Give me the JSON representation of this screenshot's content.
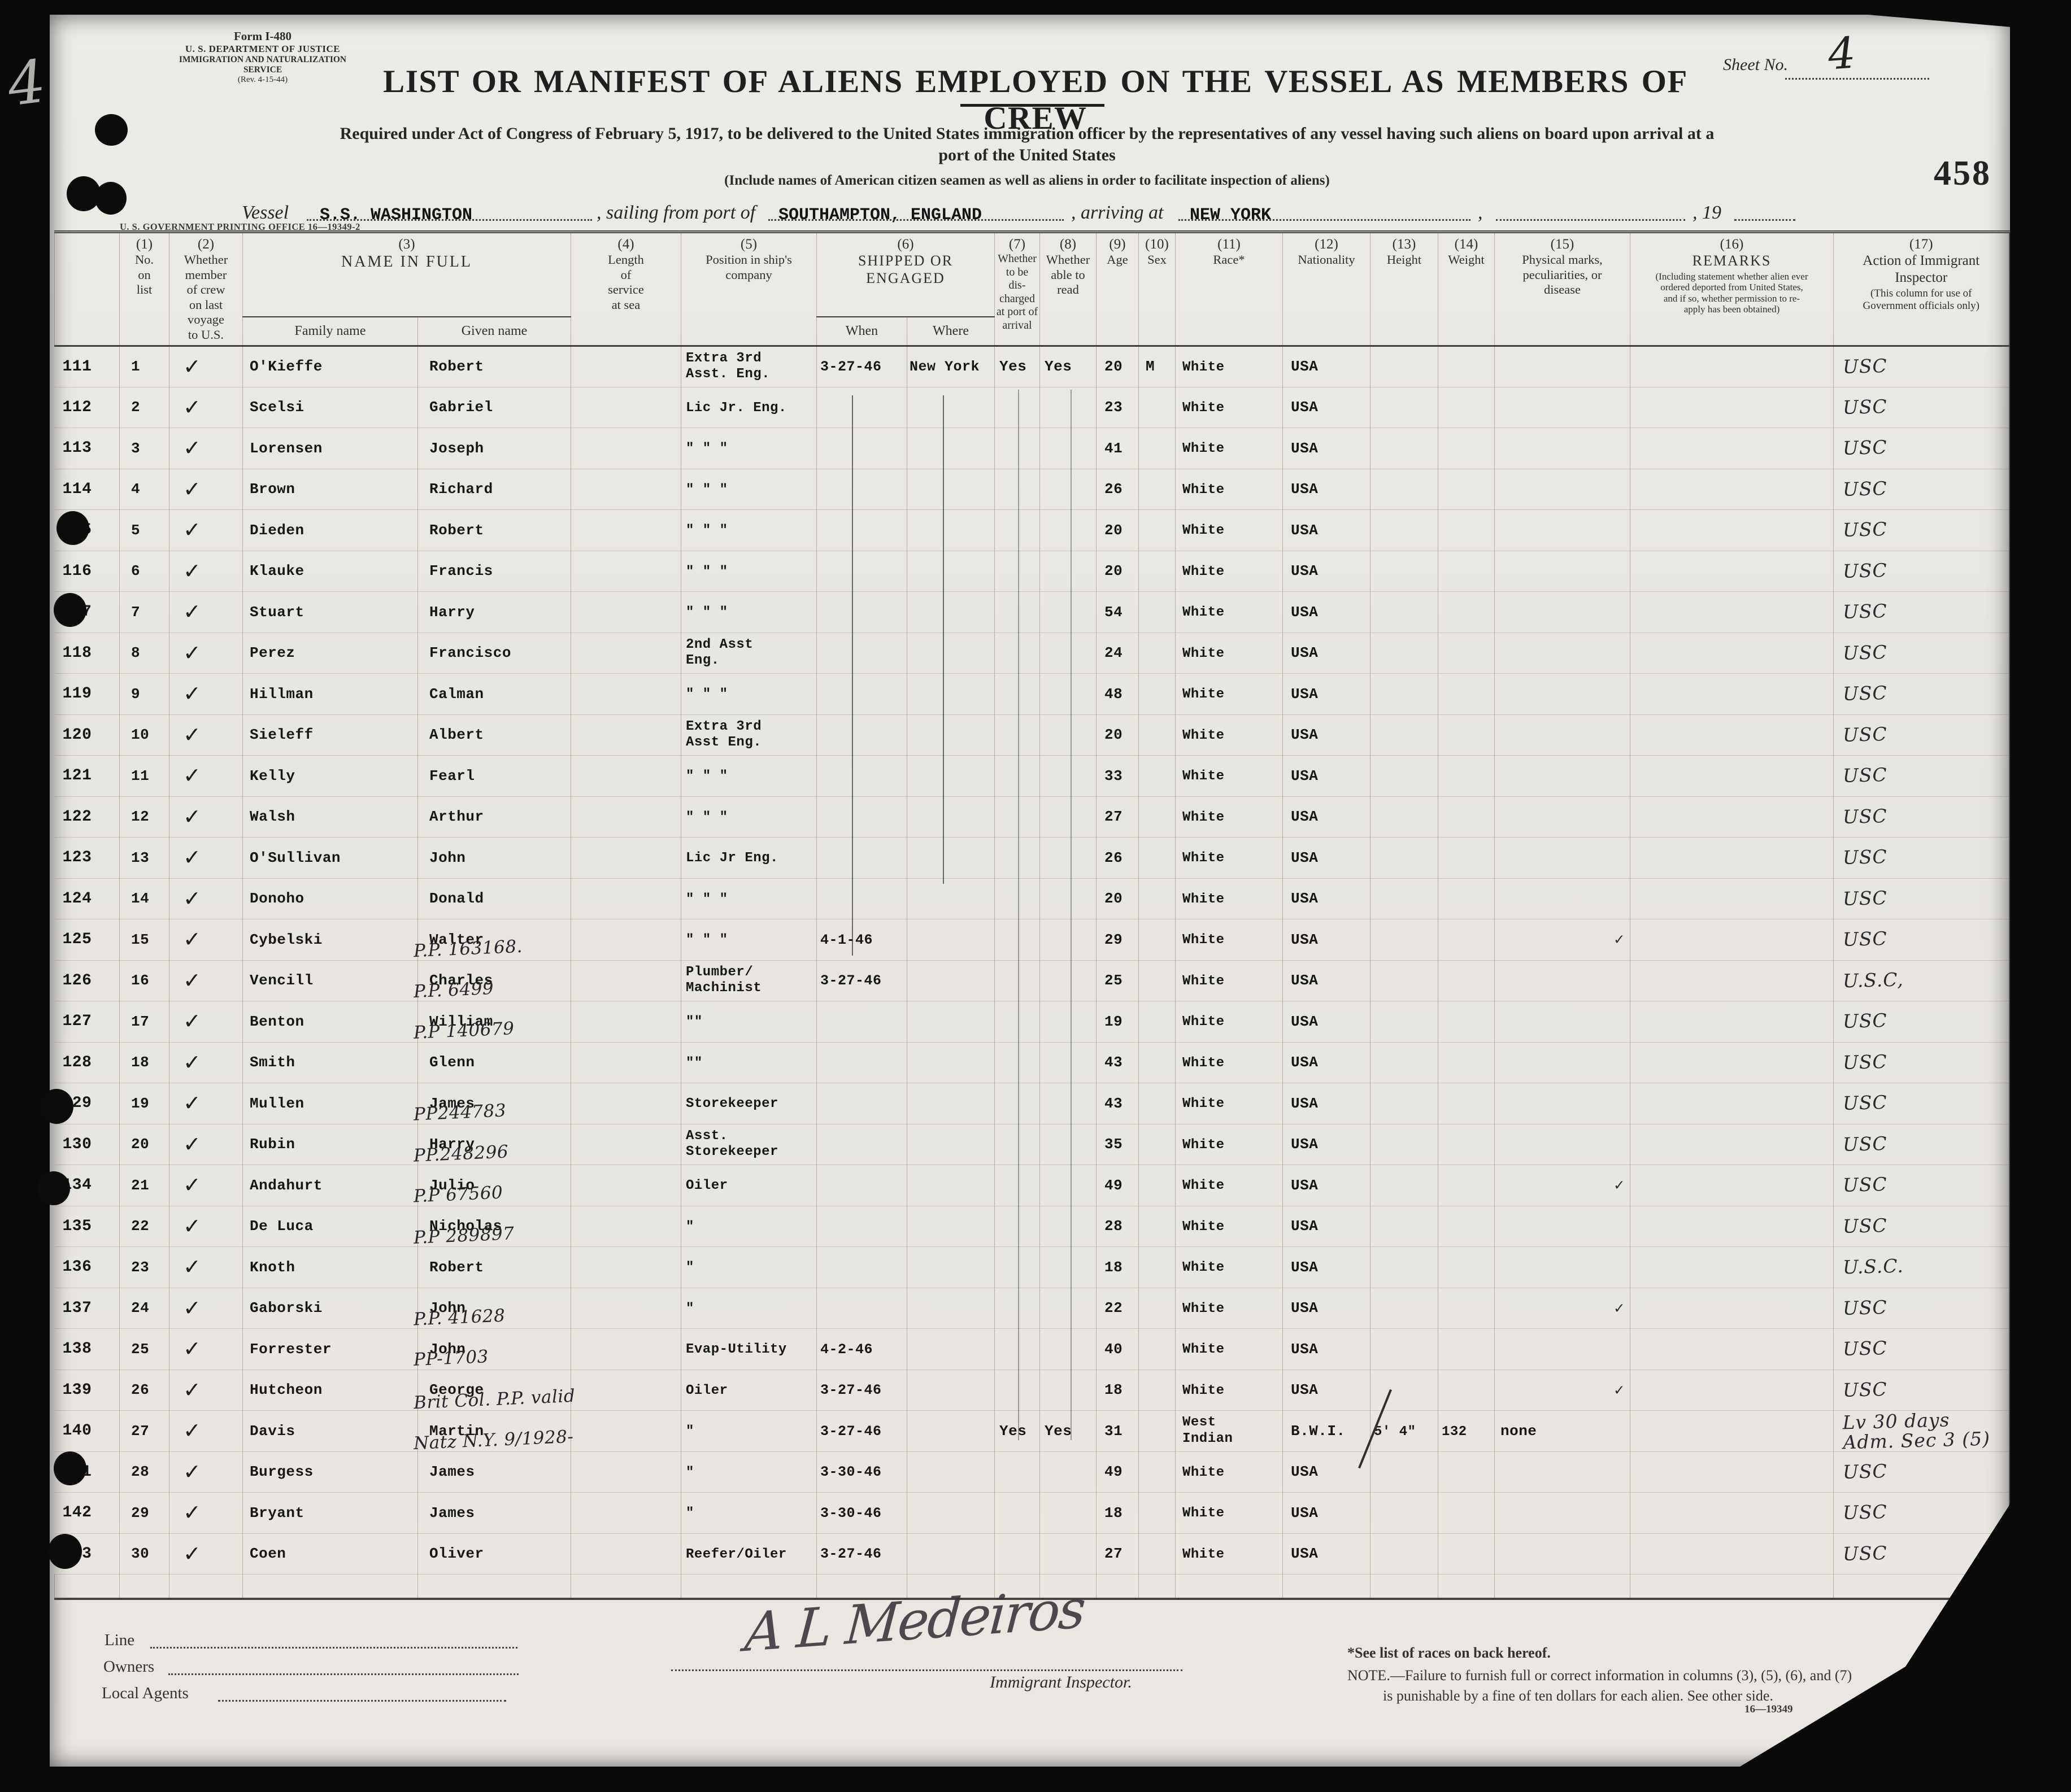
{
  "palette": {
    "film": "#0a0a0a",
    "page": "#e9e7e2",
    "ink_printed": "#2b2b2b",
    "ink_typed": "#161616",
    "ink_hand": "#2c2a31"
  },
  "film": {
    "margin_numeral": "4"
  },
  "form": {
    "id_lines": [
      "Form I-480",
      "U. S. DEPARTMENT OF JUSTICE",
      "IMMIGRATION AND NATURALIZATION SERVICE",
      "(Rev. 4-15-44)"
    ],
    "title": "LIST OR MANIFEST OF ALIENS EMPLOYED ON THE VESSEL AS MEMBERS OF CREW",
    "sheet_label": "Sheet No.",
    "sheet_value": "4",
    "subtitle_line1": "Required under Act of Congress of February 5, 1917, to be delivered to the United States immigration officer by the representatives of any vessel having such aliens on board upon arrival at a",
    "subtitle_line2": "port of the United States",
    "include_note": "(Include names of American citizen seamen as well as aliens in order to facilitate inspection of aliens)",
    "stamp_number": "458",
    "printing_office": "U. S. GOVERNMENT PRINTING OFFICE   16—19349-2",
    "vessel_label": "Vessel",
    "vessel_value": "S.S. WASHINGTON",
    "sailing_label": ", sailing from port of",
    "sailing_value": "SOUTHAMPTON, ENGLAND",
    "arriving_label": ", arriving at",
    "arriving_value": "NEW YORK",
    "comma_label": ",",
    "year_label": ", 19"
  },
  "table": {
    "header": {
      "c1": {
        "num": "(1)",
        "label": "No.\non\nlist"
      },
      "c2": {
        "num": "(2)",
        "label": "Whether\nmember\nof crew\non last\nvoyage\nto U.S."
      },
      "c3": {
        "num": "(3)",
        "label": "NAME IN FULL",
        "family": "Family name",
        "given": "Given name"
      },
      "c4": {
        "num": "(4)",
        "label": "Length\nof\nservice\nat sea"
      },
      "c5": {
        "num": "(5)",
        "label": "Position in ship's\ncompany"
      },
      "c6": {
        "num": "(6)",
        "label": "SHIPPED OR ENGAGED",
        "when": "When",
        "where": "Where"
      },
      "c7": {
        "num": "(7)",
        "label": "Whether\nto be\ndis-\ncharged\nat port of\narrival"
      },
      "c8": {
        "num": "(8)",
        "label": "Whether\nable to\nread"
      },
      "c9": {
        "num": "(9)",
        "label": "Age"
      },
      "c10": {
        "num": "(10)",
        "label": "Sex"
      },
      "c11": {
        "num": "(11)",
        "label": "Race*"
      },
      "c12": {
        "num": "(12)",
        "label": "Nationality"
      },
      "c13": {
        "num": "(13)",
        "label": "Height"
      },
      "c14": {
        "num": "(14)",
        "label": "Weight"
      },
      "c15": {
        "num": "(15)",
        "label": "Physical marks,\npeculiarities, or\ndisease"
      },
      "c16": {
        "num": "(16)",
        "label": "REMARKS",
        "sub": "(Including statement whether alien ever\nordered deported from United States,\nand if so, whether permission to re-\napply has been obtained)"
      },
      "c17": {
        "num": "(17)",
        "label": "Action of Immigrant\nInspector",
        "sub": "(This column for use of\nGovernment officials only)"
      }
    },
    "rows": [
      {
        "margin": "111",
        "no": "1",
        "check": "✓",
        "family": "O'Kieffe",
        "given": "Robert",
        "position": "Extra 3rd\nAsst. Eng.",
        "when": "3-27-46",
        "where": "New York",
        "discharged": "Yes",
        "read": "Yes",
        "age": "20",
        "sex": "M",
        "race": "White",
        "nationality": "USA",
        "action": "USC"
      },
      {
        "margin": "112",
        "no": "2",
        "check": "✓",
        "family": "Scelsi",
        "given": "Gabriel",
        "position": "Lic Jr. Eng.",
        "age": "23",
        "race": "White",
        "nationality": "USA",
        "action": "USC"
      },
      {
        "margin": "113",
        "no": "3",
        "check": "✓",
        "family": "Lorensen",
        "given": "Joseph",
        "position": "\"   \"   \"",
        "age": "41",
        "race": "White",
        "nationality": "USA",
        "action": "USC"
      },
      {
        "margin": "114",
        "no": "4",
        "check": "✓",
        "family": "Brown",
        "given": "Richard",
        "position": "\"   \"   \"",
        "age": "26",
        "race": "White",
        "nationality": "USA",
        "action": "USC"
      },
      {
        "margin": "115",
        "no": "5",
        "check": "✓",
        "family": "Dieden",
        "given": "Robert",
        "position": "\"   \"   \"",
        "age": "20",
        "race": "White",
        "nationality": "USA",
        "action": "USC"
      },
      {
        "margin": "116",
        "no": "6",
        "check": "✓",
        "family": "Klauke",
        "given": "Francis",
        "position": "\"   \"   \"",
        "age": "20",
        "race": "White",
        "nationality": "USA",
        "action": "USC"
      },
      {
        "margin": "117",
        "no": "7",
        "check": "✓",
        "family": "Stuart",
        "given": "Harry",
        "position": "\"   \"   \"",
        "age": "54",
        "race": "White",
        "nationality": "USA",
        "action": "USC"
      },
      {
        "margin": "118",
        "no": "8",
        "check": "✓",
        "family": "Perez",
        "given": "Francisco",
        "position": "2nd Asst\n Eng.",
        "age": "24",
        "race": "White",
        "nationality": "USA",
        "action": "USC"
      },
      {
        "margin": "119",
        "no": "9",
        "check": "✓",
        "family": "Hillman",
        "given": "Calman",
        "position": "\"  \"  \"",
        "age": "48",
        "race": "White",
        "nationality": "USA",
        "action": "USC"
      },
      {
        "margin": "120",
        "no": "10",
        "check": "✓",
        "family": "Sieleff",
        "given": "Albert",
        "position": "Extra 3rd\nAsst Eng.",
        "age": "20",
        "race": "White",
        "nationality": "USA",
        "action": "USC"
      },
      {
        "margin": "121",
        "no": "11",
        "check": "✓",
        "family": "Kelly",
        "given": "Fearl",
        "position": "\"  \"  \"",
        "age": "33",
        "race": "White",
        "nationality": "USA",
        "action": "USC"
      },
      {
        "margin": "122",
        "no": "12",
        "check": "✓",
        "family": "Walsh",
        "given": "Arthur",
        "position": "\"  \"  \"",
        "age": "27",
        "race": "White",
        "nationality": "USA",
        "action": "USC"
      },
      {
        "margin": "123",
        "no": "13",
        "check": "✓",
        "family": "O'Sullivan",
        "given": "John",
        "position": "Lic Jr Eng.",
        "age": "26",
        "race": "White",
        "nationality": "USA",
        "action": "USC"
      },
      {
        "margin": "124",
        "no": "14",
        "check": "✓",
        "family": "Donoho",
        "given": "Donald",
        "position": "\"  \"  \"",
        "age": "20",
        "race": "White",
        "nationality": "USA",
        "action": "USC"
      },
      {
        "margin": "125",
        "no": "15",
        "check": "✓",
        "family": "Cybelski",
        "given": "Walter",
        "note": "P.P. 163168.",
        "position": "\"  \"  \"",
        "when": "4-1-46",
        "age": "29",
        "race": "White",
        "nationality": "USA",
        "marks_check": "✓",
        "action": "USC"
      },
      {
        "margin": "126",
        "no": "16",
        "check": "✓",
        "family": "Vencill",
        "given": "Charles",
        "note": "P.P. 6499",
        "position": "Plumber/\n Machinist",
        "when": "3-27-46",
        "age": "25",
        "race": "White",
        "nationality": "USA",
        "action": "U.S.C,"
      },
      {
        "margin": "127",
        "no": "17",
        "check": "✓",
        "family": "Benton",
        "given": "William",
        "note": "P.P 140679",
        "position": "\"\"",
        "age": "19",
        "race": "White",
        "nationality": "USA",
        "action": "USC"
      },
      {
        "margin": "128",
        "no": "18",
        "check": "✓",
        "family": "Smith",
        "given": "Glenn",
        "position": "\"\"",
        "age": "43",
        "race": "White",
        "nationality": "USA",
        "action": "USC"
      },
      {
        "margin": "129",
        "no": "19",
        "check": "✓",
        "family": "Mullen",
        "given": "James",
        "note": "PP244783",
        "position": "Storekeeper",
        "age": "43",
        "race": "White",
        "nationality": "USA",
        "action": "USC"
      },
      {
        "margin": "130",
        "no": "20",
        "check": "✓",
        "family": "Rubin",
        "given": "Harry",
        "note": "PP.248296",
        "position": "Asst.\nStorekeeper",
        "age": "35",
        "race": "White",
        "nationality": "USA",
        "action": "USC"
      },
      {
        "margin": "134",
        "no": "21",
        "check": "✓",
        "family": "Andahurt",
        "given": "Julio",
        "note": "P.P 67560",
        "position": "Oiler",
        "age": "49",
        "race": "White",
        "nationality": "USA",
        "marks_check": "✓",
        "action": "USC"
      },
      {
        "margin": "135",
        "no": "22",
        "check": "✓",
        "family": "De Luca",
        "given": "Nicholas",
        "note": "P.P 289897",
        "position": "\"",
        "age": "28",
        "race": "White",
        "nationality": "USA",
        "action": "USC"
      },
      {
        "margin": "136",
        "no": "23",
        "check": "✓",
        "family": "Knoth",
        "given": "Robert",
        "position": "\"",
        "age": "18",
        "race": "White",
        "nationality": "USA",
        "action": "U.S.C."
      },
      {
        "margin": "137",
        "no": "24",
        "check": "✓",
        "family": "Gaborski",
        "given": "John",
        "note": "P.P. 41628",
        "position": "\"",
        "age": "22",
        "race": "White",
        "nationality": "USA",
        "marks_check": "✓",
        "action": "USC"
      },
      {
        "margin": "138",
        "no": "25",
        "check": "✓",
        "family": "Forrester",
        "given": "John",
        "note": "PP-1703",
        "position": "Evap-Utility",
        "when": "4-2-46",
        "age": "40",
        "race": "White",
        "nationality": "USA",
        "action": "USC"
      },
      {
        "margin": "139",
        "no": "26",
        "check": "✓",
        "family": "Hutcheon",
        "given": "George",
        "note": "Brit Col. P.P. valid",
        "position": "Oiler",
        "when": "3-27-46",
        "age": "18",
        "race": "White",
        "nationality": "USA",
        "marks_check": "✓",
        "action": "USC"
      },
      {
        "margin": "140",
        "no": "27",
        "check": "✓",
        "family": "Davis",
        "given": "Martin",
        "note": "Natz N.Y. 9/1928-",
        "position": "\"",
        "when": "3-27-46",
        "discharged": "Yes",
        "read": "Yes",
        "age": "31",
        "race": "West\nIndian",
        "nationality": "B.W.I.",
        "height": "5' 4\"",
        "weight": "132",
        "marks": "none",
        "action": "Lv 30 days\nAdm. Sec 3 (5)"
      },
      {
        "margin": "141",
        "no": "28",
        "check": "✓",
        "family": "Burgess",
        "given": "James",
        "position": "\"",
        "when": "3-30-46",
        "age": "49",
        "race": "White",
        "nationality": "USA",
        "action": "USC"
      },
      {
        "margin": "142",
        "no": "29",
        "check": "✓",
        "family": "Bryant",
        "given": "James",
        "position": "\"",
        "when": "3-30-46",
        "age": "18",
        "race": "White",
        "nationality": "USA",
        "action": "USC"
      },
      {
        "margin": "143",
        "no": "30",
        "check": "✓",
        "family": "Coen",
        "given": "Oliver",
        "position": "Reefer/Oiler",
        "when": "3-27-46",
        "age": "27",
        "race": "White",
        "nationality": "USA",
        "action": "USC"
      }
    ]
  },
  "footer": {
    "line_label": "Line",
    "owners_label": "Owners",
    "agents_label": "Local Agents",
    "signature": "A L Medeiros",
    "inspector_label": "Immigrant Inspector.",
    "races_note": "*See list of races on back hereof.",
    "note_line1": "NOTE.—Failure to furnish full or correct information in columns (3), (5), (6), and (7)",
    "note_line2": "is punishable by a fine of ten dollars for each alien.   See other side.",
    "print_code": "16—19349"
  }
}
